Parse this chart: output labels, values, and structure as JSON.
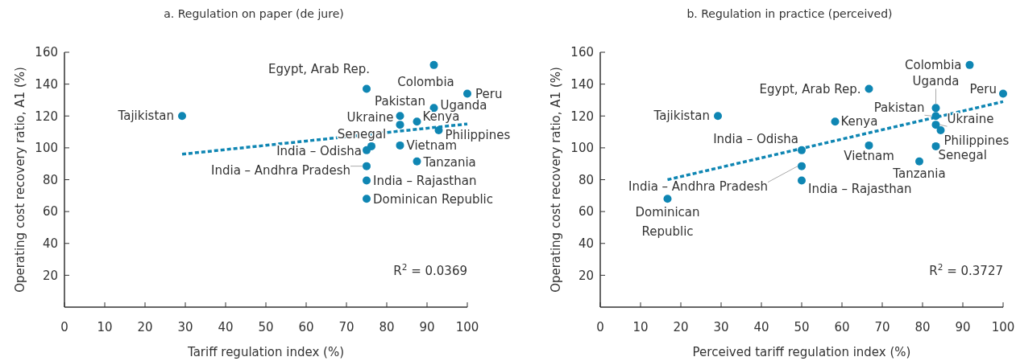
{
  "chart_data": [
    {
      "type": "scatter",
      "title": "a. Regulation on paper (de jure)",
      "xlabel": "Tariff regulation index (%)",
      "ylabel": "Operating cost recovery ratio, A1 (%)",
      "xlim": [
        0,
        100
      ],
      "ylim": [
        0,
        160
      ],
      "xticks": [
        0,
        10,
        20,
        30,
        40,
        50,
        60,
        70,
        80,
        90,
        100
      ],
      "yticks": [
        20,
        40,
        60,
        80,
        100,
        120,
        140,
        160
      ],
      "series": [
        {
          "marker": "circle",
          "color": "#0f86b3",
          "x": [
            91.7,
            75,
            100,
            83.3,
            91.7,
            29.2,
            87.5,
            83.3,
            92.9,
            76.2,
            83.3,
            75,
            87.5,
            75,
            75,
            75
          ],
          "values": [
            152,
            137,
            134,
            120,
            125,
            120,
            116.5,
            114.5,
            111,
            101,
            101.5,
            98.5,
            91.5,
            88.5,
            79.5,
            68
          ]
        },
        {
          "type": "line",
          "color": "#0f86b3",
          "line_style": "dashed",
          "x": [
            29.2,
            100
          ],
          "values": [
            96,
            115
          ]
        }
      ],
      "annotations": [
        {
          "text": "Colombia",
          "x": 91.7,
          "y": 152
        },
        {
          "text": "Egypt, Arab Rep.",
          "x": 75,
          "y": 137
        },
        {
          "text": "Peru",
          "x": 100,
          "y": 134
        },
        {
          "text": "Pakistan",
          "x": 83.3,
          "y": 120
        },
        {
          "text": "Uganda",
          "x": 91.7,
          "y": 125
        },
        {
          "text": "Tajikistan",
          "x": 29.2,
          "y": 120
        },
        {
          "text": "Kenya",
          "x": 87.5,
          "y": 116.5
        },
        {
          "text": "Ukraine",
          "x": 83.3,
          "y": 114.5
        },
        {
          "text": "Philippines",
          "x": 92.9,
          "y": 111
        },
        {
          "text": "Senegal",
          "x": 76.2,
          "y": 101
        },
        {
          "text": "Vietnam",
          "x": 83.3,
          "y": 101.5
        },
        {
          "text": "India – Odisha",
          "x": 75,
          "y": 98.5
        },
        {
          "text": "Tanzania",
          "x": 87.5,
          "y": 91.5
        },
        {
          "text": "India – Andhra Pradesh",
          "x": 75,
          "y": 88.5
        },
        {
          "text": "India – Rajasthan",
          "x": 75,
          "y": 79.5
        },
        {
          "text": "Dominican Republic",
          "x": 75,
          "y": 68
        },
        "R$^{2}$ = 0.0369"
      ]
    },
    {
      "type": "scatter",
      "title": "b. Regulation in practice (perceived)",
      "xlabel": "Perceived tariff regulation index (%)",
      "ylabel": "Operating cost recovery ratio, A1 (%)",
      "xlim": [
        0,
        100
      ],
      "ylim": [
        0,
        160
      ],
      "xticks": [
        0,
        10,
        20,
        30,
        40,
        50,
        60,
        70,
        80,
        90,
        100
      ],
      "yticks": [
        20,
        40,
        60,
        80,
        100,
        120,
        140,
        160
      ],
      "series": [
        {
          "marker": "circle",
          "color": "#0f86b3",
          "x": [
            91.7,
            66.7,
            100,
            83.3,
            83.3,
            83.3,
            84.5,
            29.2,
            58.3,
            50,
            66.7,
            83.3,
            79.2,
            50,
            50,
            16.7
          ],
          "values": [
            152,
            137,
            134,
            125,
            120,
            114.5,
            111,
            120,
            116.5,
            98.5,
            101.5,
            101,
            91.5,
            88.5,
            79.5,
            68
          ]
        },
        {
          "type": "line",
          "color": "#0f86b3",
          "line_style": "dashed",
          "x": [
            16.7,
            100
          ],
          "values": [
            80,
            129
          ]
        }
      ],
      "annotations": [
        {
          "text": "Colombia",
          "x": 91.7,
          "y": 152
        },
        {
          "text": "Egypt, Arab Rep.",
          "x": 66.7,
          "y": 137
        },
        {
          "text": "Peru",
          "x": 100,
          "y": 134
        },
        {
          "text": "Uganda",
          "x": 83.3,
          "y": 125
        },
        {
          "text": "Pakistan",
          "x": 83.3,
          "y": 120
        },
        {
          "text": "Ukraine",
          "x": 83.3,
          "y": 114.5
        },
        {
          "text": "Philippines",
          "x": 84.5,
          "y": 111
        },
        {
          "text": "Tajikistan",
          "x": 29.2,
          "y": 120
        },
        {
          "text": "Kenya",
          "x": 58.3,
          "y": 116.5
        },
        {
          "text": "India – Odisha",
          "x": 50,
          "y": 98.5
        },
        {
          "text": "Vietnam",
          "x": 66.7,
          "y": 101.5
        },
        {
          "text": "Senegal",
          "x": 83.3,
          "y": 101
        },
        {
          "text": "Tanzania",
          "x": 79.2,
          "y": 91.5
        },
        {
          "text": "India – Andhra Pradesh",
          "x": 50,
          "y": 88.5
        },
        {
          "text": "India – Rajasthan",
          "x": 50,
          "y": 79.5
        },
        {
          "text": "Dominican Republic",
          "x": 16.7,
          "y": 68
        },
        "R$^{2}$ = 0.3727"
      ]
    }
  ]
}
